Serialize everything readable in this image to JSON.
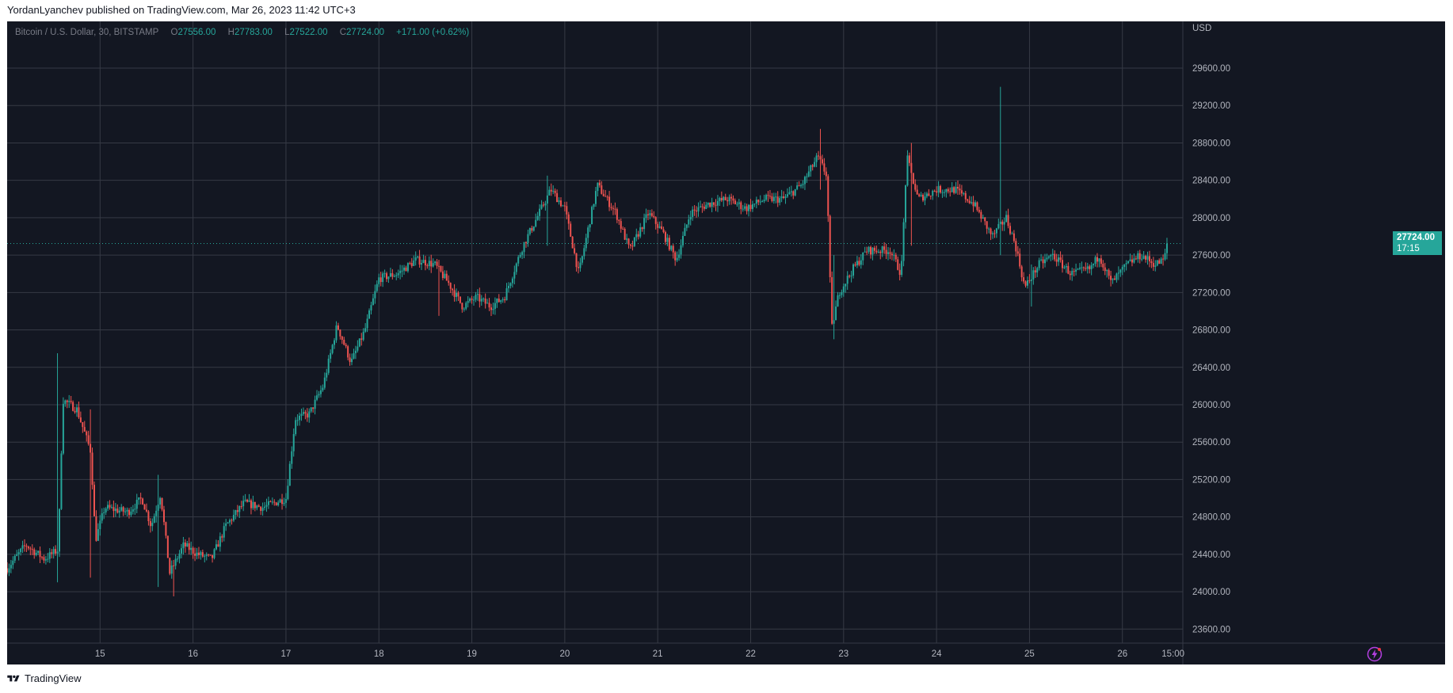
{
  "header": {
    "publisher": "YordanLyanchev published on TradingView.com, Mar 26, 2023 11:42 UTC+3"
  },
  "legend": {
    "symbol": "Bitcoin / U.S. Dollar, 30, BITSTAMP",
    "open_label": "O",
    "open": "27556.00",
    "high_label": "H",
    "high": "27783.00",
    "low_label": "L",
    "low": "27522.00",
    "close_label": "C",
    "close": "27724.00",
    "change": "+171.00 (+0.62%)"
  },
  "price_tag": {
    "price": "27724.00",
    "countdown": "17:15"
  },
  "footer": {
    "brand": "TradingView"
  },
  "colors": {
    "background": "#131722",
    "grid": "#363a45",
    "up": "#26a69a",
    "down": "#ef5350",
    "axis_text": "#b2b5be",
    "bolt": "#b43fe0"
  },
  "icons": [
    "tradingview-logo-icon",
    "lightning-icon"
  ],
  "chart_data": {
    "type": "candlestick",
    "currency_label": "USD",
    "interval": "30",
    "y_ticks": [
      23600,
      24000,
      24400,
      24800,
      25200,
      25600,
      26000,
      26400,
      26800,
      27200,
      27600,
      28000,
      28400,
      28800,
      29200,
      29600
    ],
    "y_tick_labels": [
      "23600.00",
      "24000.00",
      "24400.00",
      "24800.00",
      "25200.00",
      "25600.00",
      "26000.00",
      "26400.00",
      "26800.00",
      "27200.00",
      "27600.00",
      "28000.00",
      "28400.00",
      "28800.00",
      "29200.00",
      "29600.00"
    ],
    "x_tick_labels": [
      "15",
      "16",
      "17",
      "18",
      "19",
      "20",
      "21",
      "22",
      "23",
      "24",
      "25",
      "26",
      "15:00"
    ],
    "x_tick_positions_days": [
      1,
      2,
      3,
      4,
      5,
      6,
      7,
      8,
      9,
      10,
      11,
      12,
      12.545
    ],
    "x_range_days": [
      0,
      12.65
    ],
    "y_range": [
      23450,
      30100
    ],
    "last_price": 27724,
    "grid": true,
    "price_anchors": [
      [
        0.0,
        24250
      ],
      [
        0.2,
        24500
      ],
      [
        0.4,
        24350
      ],
      [
        0.55,
        24450
      ],
      [
        0.6,
        26050
      ],
      [
        0.75,
        25950
      ],
      [
        0.9,
        25500
      ],
      [
        0.95,
        24550
      ],
      [
        1.05,
        24900
      ],
      [
        1.3,
        24850
      ],
      [
        1.45,
        25000
      ],
      [
        1.55,
        24700
      ],
      [
        1.65,
        25050
      ],
      [
        1.75,
        24200
      ],
      [
        1.9,
        24500
      ],
      [
        2.05,
        24400
      ],
      [
        2.2,
        24350
      ],
      [
        2.35,
        24700
      ],
      [
        2.55,
        24950
      ],
      [
        2.75,
        24900
      ],
      [
        3.0,
        25000
      ],
      [
        3.1,
        25850
      ],
      [
        3.25,
        25900
      ],
      [
        3.4,
        26200
      ],
      [
        3.55,
        26850
      ],
      [
        3.7,
        26450
      ],
      [
        3.85,
        26800
      ],
      [
        4.0,
        27350
      ],
      [
        4.2,
        27400
      ],
      [
        4.4,
        27550
      ],
      [
        4.6,
        27500
      ],
      [
        4.75,
        27300
      ],
      [
        4.9,
        27050
      ],
      [
        5.05,
        27150
      ],
      [
        5.2,
        27050
      ],
      [
        5.35,
        27150
      ],
      [
        5.55,
        27700
      ],
      [
        5.85,
        28300
      ],
      [
        6.0,
        28100
      ],
      [
        6.15,
        27400
      ],
      [
        6.35,
        28350
      ],
      [
        6.55,
        28050
      ],
      [
        6.7,
        27650
      ],
      [
        6.9,
        28050
      ],
      [
        7.05,
        27850
      ],
      [
        7.2,
        27550
      ],
      [
        7.35,
        28050
      ],
      [
        7.55,
        28150
      ],
      [
        7.75,
        28200
      ],
      [
        7.95,
        28100
      ],
      [
        8.15,
        28200
      ],
      [
        8.35,
        28200
      ],
      [
        8.55,
        28350
      ],
      [
        8.72,
        28650
      ],
      [
        8.82,
        28450
      ],
      [
        8.87,
        26800
      ],
      [
        8.95,
        27200
      ],
      [
        9.1,
        27450
      ],
      [
        9.25,
        27650
      ],
      [
        9.5,
        27650
      ],
      [
        9.62,
        27400
      ],
      [
        9.68,
        28650
      ],
      [
        9.8,
        28200
      ],
      [
        10.0,
        28300
      ],
      [
        10.2,
        28300
      ],
      [
        10.4,
        28150
      ],
      [
        10.6,
        27800
      ],
      [
        10.75,
        28000
      ],
      [
        10.85,
        27700
      ],
      [
        10.95,
        27250
      ],
      [
        11.1,
        27500
      ],
      [
        11.25,
        27600
      ],
      [
        11.45,
        27400
      ],
      [
        11.65,
        27450
      ],
      [
        11.75,
        27600
      ],
      [
        11.88,
        27300
      ],
      [
        12.05,
        27500
      ],
      [
        12.2,
        27600
      ],
      [
        12.35,
        27500
      ],
      [
        12.45,
        27550
      ],
      [
        12.48,
        27724
      ]
    ],
    "spikes": [
      [
        0.55,
        26550,
        24100
      ],
      [
        0.9,
        25950,
        24150
      ],
      [
        1.62,
        25250,
        24050
      ],
      [
        1.8,
        24300,
        23950
      ],
      [
        4.65,
        27550,
        26950
      ],
      [
        5.82,
        28450,
        27700
      ],
      [
        8.75,
        28950,
        28300
      ],
      [
        8.9,
        27600,
        26700
      ],
      [
        9.72,
        28800,
        27700
      ],
      [
        10.68,
        29400,
        27600
      ],
      [
        11.02,
        27500,
        27050
      ]
    ]
  }
}
